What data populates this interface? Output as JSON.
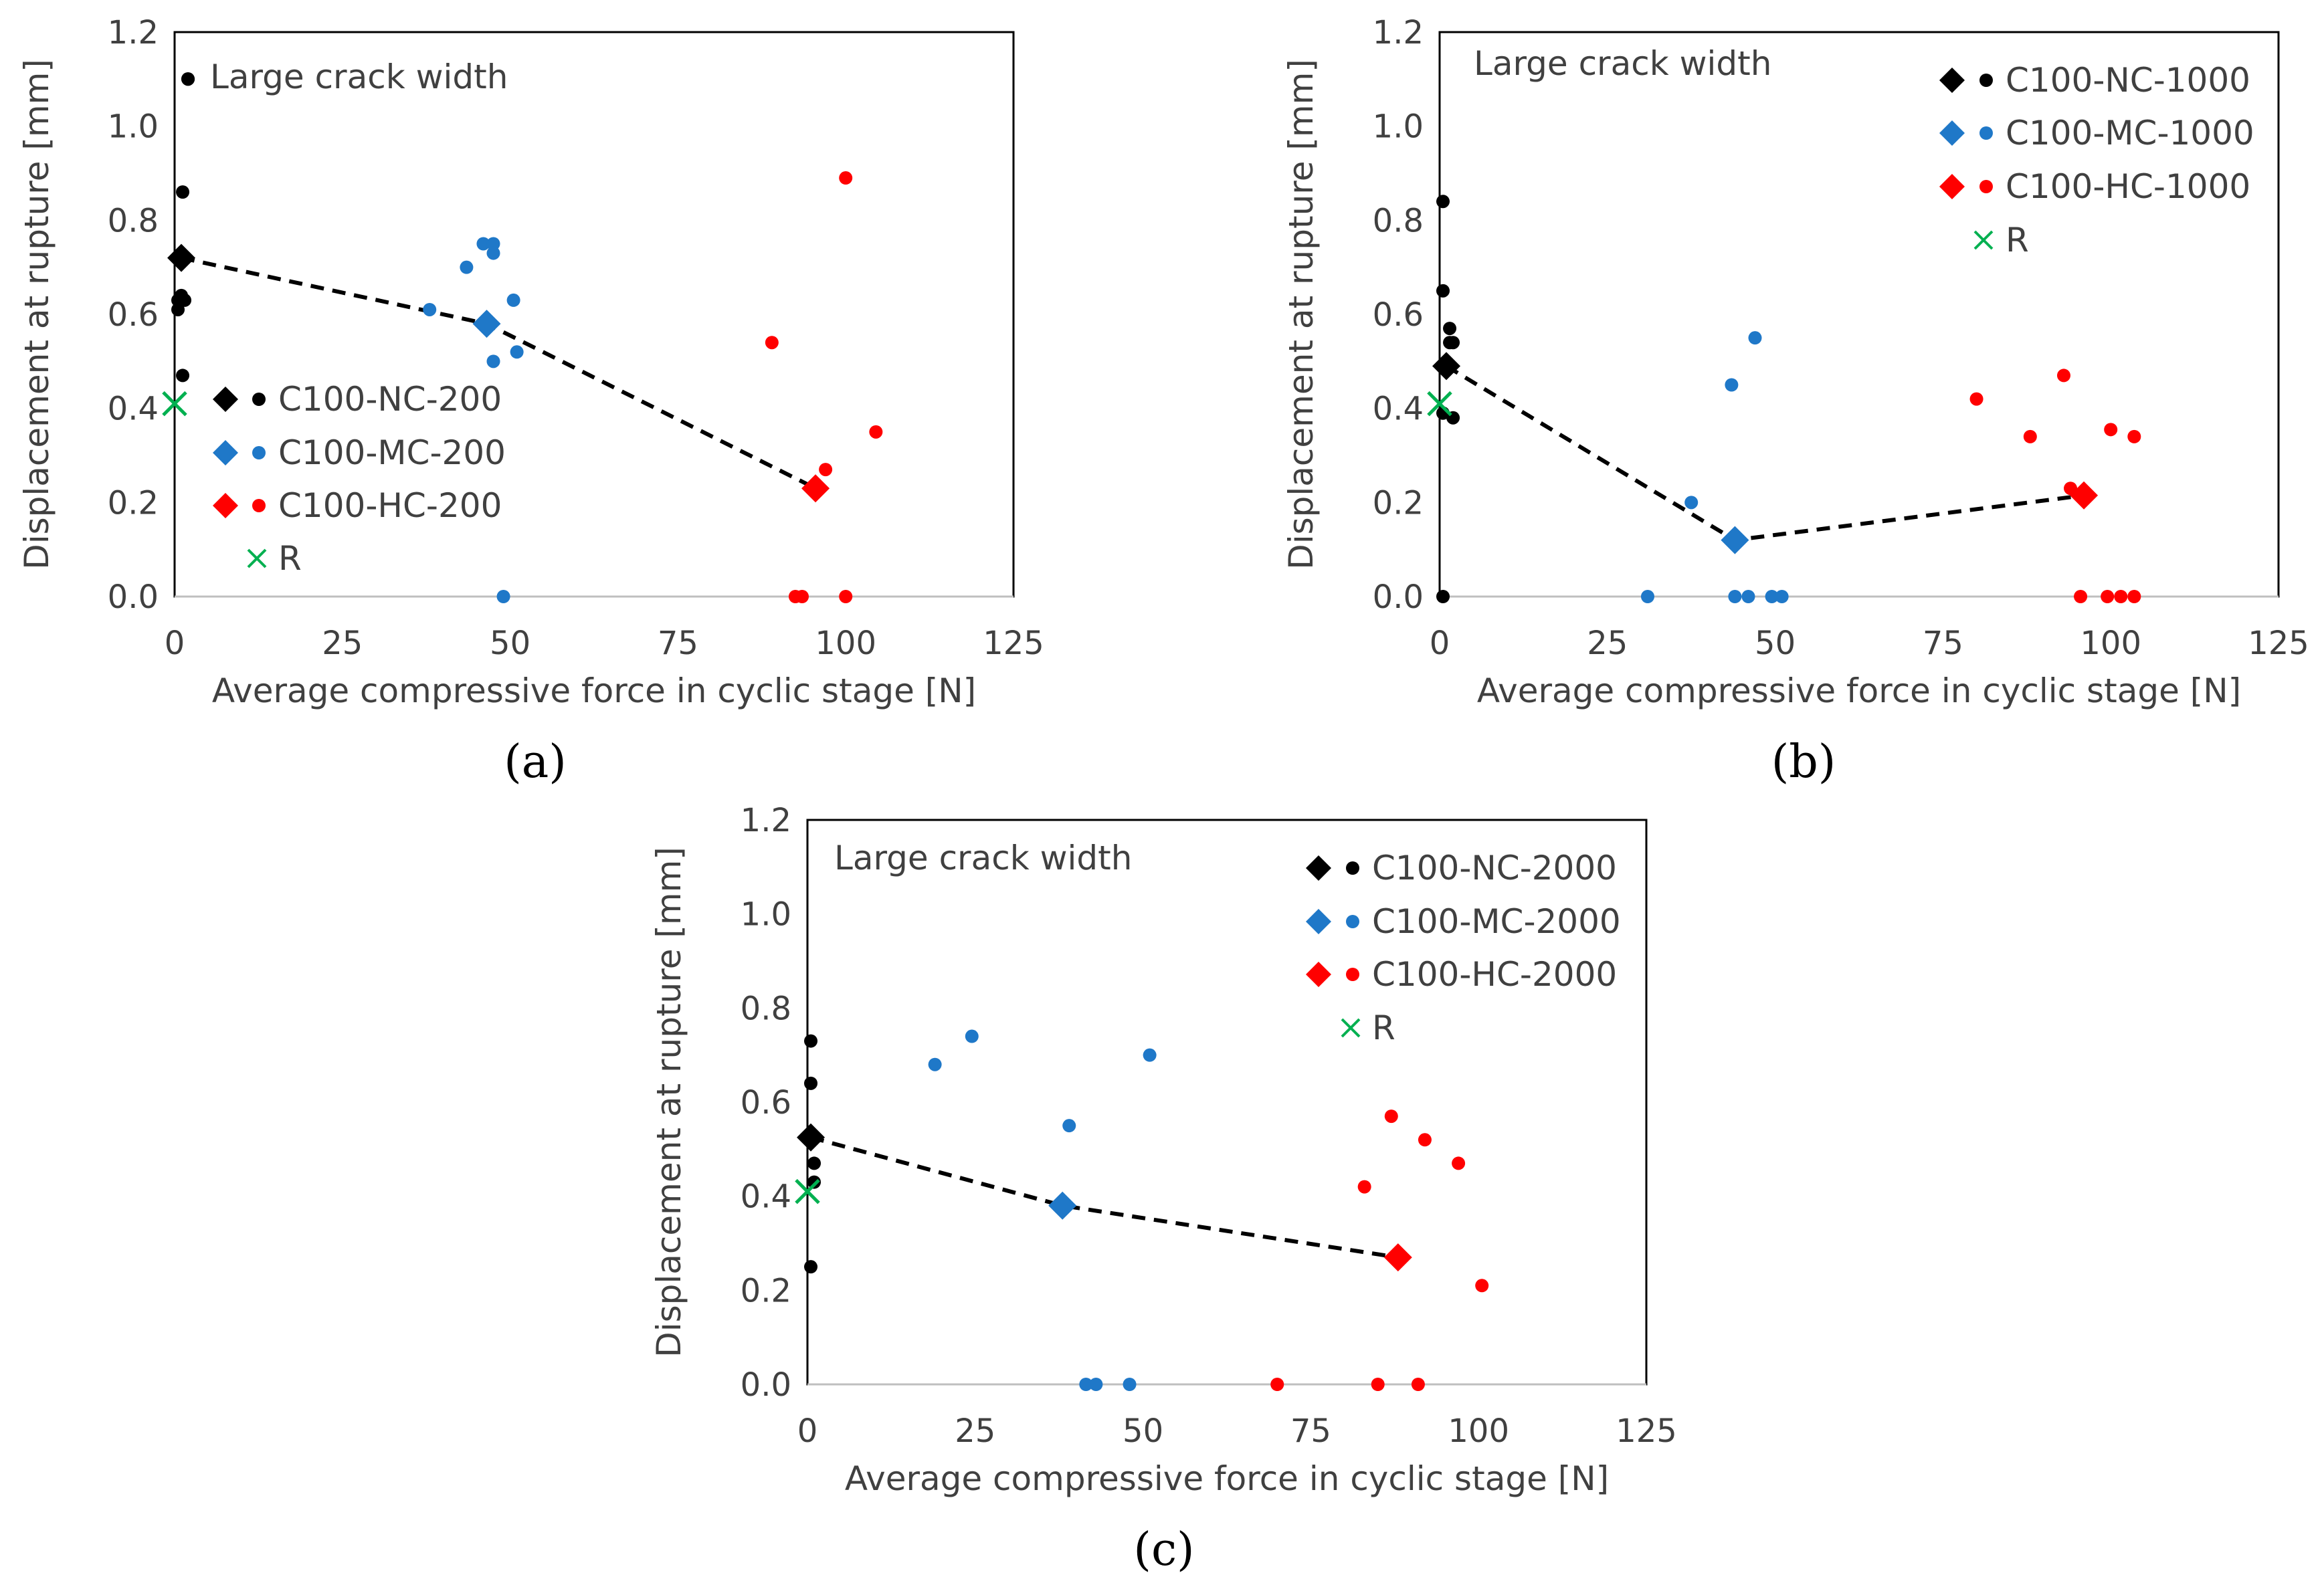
{
  "figure": {
    "xlabel": "Average compressive force in cyclic stage [N]",
    "ylabel": "Displacement at rupture [mm]",
    "colors": {
      "NC": "#000000",
      "MC": "#1f78c8",
      "HC": "#ff0000",
      "R": "#00b050"
    }
  },
  "chart_data": [
    {
      "type": "scatter",
      "panel": "(a)",
      "note": "Large crack width",
      "xlim": [
        0,
        125
      ],
      "ylim": [
        0,
        1.2
      ],
      "xticks": [
        "0",
        "25",
        "50",
        "75",
        "100",
        "125"
      ],
      "yticks": [
        "0.0",
        "0.2",
        "0.4",
        "0.6",
        "0.8",
        "1.0",
        "1.2"
      ],
      "legend": [
        "C100-NC-200",
        "C100-MC-200",
        "C100-HC-200",
        "R"
      ],
      "series": [
        {
          "name": "C100-NC-200",
          "key": "NC",
          "points": [
            [
              0.5,
              0.61
            ],
            [
              0.5,
              0.63
            ],
            [
              1,
              0.64
            ],
            [
              1.2,
              0.47
            ],
            [
              1.5,
              0.63
            ],
            [
              1.2,
              0.86
            ],
            [
              2,
              1.1
            ]
          ],
          "mean": [
            1,
            0.72
          ]
        },
        {
          "name": "C100-MC-200",
          "key": "MC",
          "points": [
            [
              38,
              0.61
            ],
            [
              43.5,
              0.7
            ],
            [
              46,
              0.75
            ],
            [
              47.5,
              0.75
            ],
            [
              47.5,
              0.73
            ],
            [
              50.5,
              0.63
            ],
            [
              47.5,
              0.5
            ],
            [
              51,
              0.52
            ],
            [
              49,
              0
            ]
          ],
          "mean": [
            46.5,
            0.58
          ]
        },
        {
          "name": "C100-HC-200",
          "key": "HC",
          "points": [
            [
              89,
              0.54
            ],
            [
              100,
              0.89
            ],
            [
              97,
              0.27
            ],
            [
              104.5,
              0.35
            ],
            [
              92.5,
              0
            ],
            [
              93.5,
              0
            ],
            [
              100,
              0
            ]
          ],
          "mean": [
            95.5,
            0.23
          ]
        },
        {
          "name": "R",
          "key": "R",
          "points": [],
          "mean": [
            0,
            0.41
          ]
        }
      ],
      "trend": [
        [
          1,
          0.72
        ],
        [
          46.5,
          0.58
        ],
        [
          95.5,
          0.23
        ]
      ]
    },
    {
      "type": "scatter",
      "panel": "(b)",
      "note": "Large crack width",
      "xlim": [
        0,
        125
      ],
      "ylim": [
        0,
        1.2
      ],
      "xticks": [
        "0",
        "25",
        "50",
        "75",
        "100",
        "125"
      ],
      "yticks": [
        "0.0",
        "0.2",
        "0.4",
        "0.6",
        "0.8",
        "1.0",
        "1.2"
      ],
      "legend": [
        "C100-NC-1000",
        "C100-MC-1000",
        "C100-HC-1000",
        "R"
      ],
      "series": [
        {
          "name": "C100-NC-1000",
          "key": "NC",
          "points": [
            [
              0.5,
              0.84
            ],
            [
              0.5,
              0.65
            ],
            [
              1.5,
              0.57
            ],
            [
              1.5,
              0.54
            ],
            [
              2,
              0.54
            ],
            [
              0.5,
              0.39
            ],
            [
              2,
              0.38
            ],
            [
              0.5,
              0
            ]
          ],
          "mean": [
            1,
            0.49
          ]
        },
        {
          "name": "C100-MC-1000",
          "key": "MC",
          "points": [
            [
              47,
              0.55
            ],
            [
              43.5,
              0.45
            ],
            [
              37.5,
              0.2
            ],
            [
              31,
              0
            ],
            [
              44,
              0
            ],
            [
              46,
              0
            ],
            [
              49.5,
              0
            ],
            [
              51,
              0
            ]
          ],
          "mean": [
            44,
            0.12
          ]
        },
        {
          "name": "C100-HC-1000",
          "key": "HC",
          "points": [
            [
              80,
              0.42
            ],
            [
              93,
              0.47
            ],
            [
              88,
              0.34
            ],
            [
              100,
              0.355
            ],
            [
              103.5,
              0.34
            ],
            [
              94,
              0.23
            ],
            [
              95.5,
              0
            ],
            [
              99.5,
              0
            ],
            [
              101.5,
              0
            ],
            [
              103.5,
              0
            ]
          ],
          "mean": [
            96,
            0.215
          ]
        },
        {
          "name": "R",
          "key": "R",
          "points": [],
          "mean": [
            0,
            0.41
          ]
        }
      ],
      "trend": [
        [
          1,
          0.49
        ],
        [
          44,
          0.12
        ],
        [
          96,
          0.215
        ]
      ]
    },
    {
      "type": "scatter",
      "panel": "(c)",
      "note": "Large crack width",
      "xlim": [
        0,
        125
      ],
      "ylim": [
        0,
        1.2
      ],
      "xticks": [
        "0",
        "25",
        "50",
        "75",
        "100",
        "125"
      ],
      "yticks": [
        "0.0",
        "0.2",
        "0.4",
        "0.6",
        "0.8",
        "1.0",
        "1.2"
      ],
      "legend": [
        "C100-NC-2000",
        "C100-MC-2000",
        "C100-HC-2000",
        "R"
      ],
      "series": [
        {
          "name": "C100-NC-2000",
          "key": "NC",
          "points": [
            [
              0.5,
              0.73
            ],
            [
              0.5,
              0.64
            ],
            [
              1,
              0.47
            ],
            [
              1,
              0.43
            ],
            [
              0.5,
              0.25
            ]
          ],
          "mean": [
            0.5,
            0.525
          ]
        },
        {
          "name": "C100-MC-2000",
          "key": "MC",
          "points": [
            [
              19,
              0.68
            ],
            [
              24.5,
              0.74
            ],
            [
              51,
              0.7
            ],
            [
              39,
              0.55
            ],
            [
              41.5,
              0
            ],
            [
              43,
              0
            ],
            [
              48,
              0
            ]
          ],
          "mean": [
            38,
            0.38
          ]
        },
        {
          "name": "C100-HC-2000",
          "key": "HC",
          "points": [
            [
              87,
              0.57
            ],
            [
              92,
              0.52
            ],
            [
              97,
              0.47
            ],
            [
              83,
              0.42
            ],
            [
              100.5,
              0.21
            ],
            [
              70,
              0
            ],
            [
              85,
              0
            ],
            [
              91,
              0
            ]
          ],
          "mean": [
            88,
            0.27
          ]
        },
        {
          "name": "R",
          "key": "R",
          "points": [],
          "mean": [
            0,
            0.41
          ]
        }
      ],
      "trend": [
        [
          0.5,
          0.525
        ],
        [
          38,
          0.38
        ],
        [
          88,
          0.27
        ]
      ]
    }
  ]
}
